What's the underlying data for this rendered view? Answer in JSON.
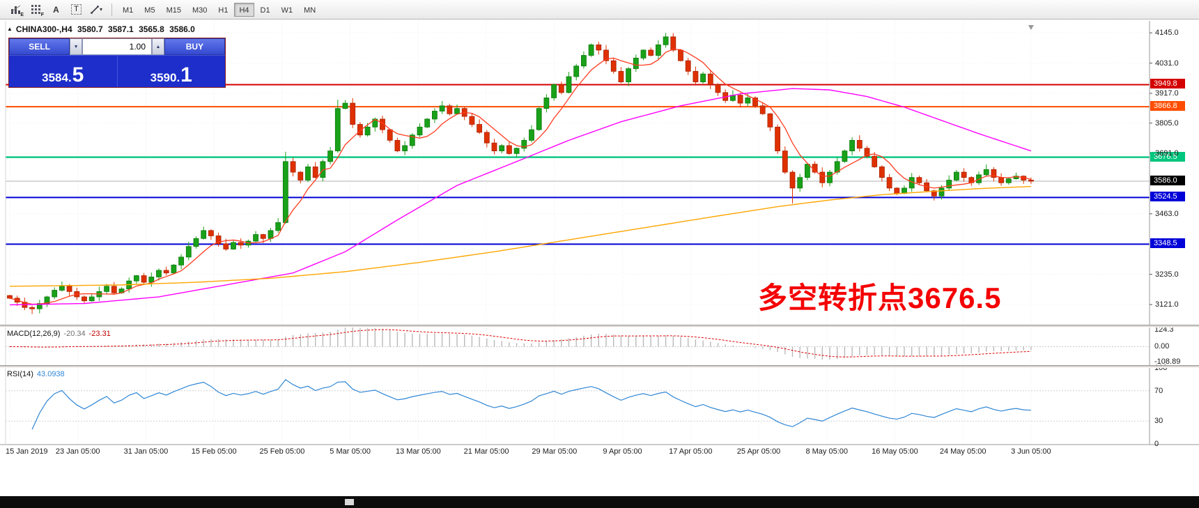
{
  "toolbar": {
    "icons": [
      {
        "name": "expert-chart-icon",
        "label": "E"
      },
      {
        "name": "grid-template-icon",
        "label": "F"
      },
      {
        "name": "text-tool-icon",
        "label": "A"
      },
      {
        "name": "textbox-tool-icon",
        "label": "T"
      },
      {
        "name": "drawing-tools-dropdown",
        "label": "▾"
      }
    ],
    "timeframes": [
      "M1",
      "M5",
      "M15",
      "M30",
      "H1",
      "H4",
      "D1",
      "W1",
      "MN"
    ],
    "active_timeframe": "H4"
  },
  "symbol_info": {
    "tri": "▲",
    "name": "CHINA300-,H4",
    "open": "3580.7",
    "high": "3587.1",
    "low": "3565.8",
    "close": "3586.0"
  },
  "trade_panel": {
    "sell_label": "SELL",
    "buy_label": "BUY",
    "volume": "1.00",
    "spin_down": "▼",
    "spin_up": "▲",
    "sell_price_base": "3584.",
    "sell_price_big": "5",
    "buy_price_base": "3590.",
    "buy_price_big": "1"
  },
  "annotation": {
    "text": "多空转折点3676.5",
    "color": "#f50000"
  },
  "price_axis": {
    "range": [
      3045,
      4190
    ],
    "ticks": [
      "4145.0",
      "4031.0",
      "3917.0",
      "3805.0",
      "3691.0",
      "3463.0",
      "3235.0",
      "3121.0"
    ]
  },
  "hlines": [
    {
      "value": 3949.8,
      "label": "3949.8",
      "color": "#d40000",
      "width": 2
    },
    {
      "value": 3866.8,
      "label": "3866.8",
      "color": "#ff4d00",
      "width": 2
    },
    {
      "value": 3676.5,
      "label": "3676.5",
      "color": "#00c57d",
      "width": 2.4
    },
    {
      "value": 3586.0,
      "label": "3586.0",
      "color": "#000000",
      "line_color": "#b0b0b0",
      "width": 1
    },
    {
      "value": 3524.5,
      "label": "3524.5",
      "color": "#0000d8",
      "width": 2
    },
    {
      "value": 3348.5,
      "label": "3348.5",
      "color": "#0000d8",
      "width": 2
    }
  ],
  "time_axis": [
    "15 Jan 2019",
    "23 Jan 05:00",
    "31 Jan 05:00",
    "15 Feb 05:00",
    "25 Feb 05:00",
    "5 Mar 05:00",
    "13 Mar 05:00",
    "21 Mar 05:00",
    "29 Mar 05:00",
    "9 Apr 05:00",
    "17 Apr 05:00",
    "25 Apr 05:00",
    "8 May 05:00",
    "16 May 05:00",
    "24 May 05:00",
    "3 Jun 05:00"
  ],
  "indicators": {
    "macd": {
      "label": "MACD(12,26,9)",
      "value_main": "-20.34",
      "value_signal": "-23.31",
      "axis": [
        "124.3",
        "0.00",
        "-108.89"
      ],
      "range": [
        -135,
        140
      ],
      "hist_color": "#b9b9b9",
      "signal_color": "#e00000"
    },
    "rsi": {
      "label": "RSI(14)",
      "value": "43.0938",
      "axis": [
        "100",
        "70",
        "30",
        "0"
      ],
      "levels": [
        70,
        30
      ],
      "range": [
        0,
        100
      ],
      "line_color": "#2e86d5"
    }
  },
  "chart_data": {
    "type": "candlestick",
    "symbol": "CHINA300-",
    "timeframe": "H4",
    "first_open": 3155,
    "closes": [
      3145,
      3130,
      3110,
      3105,
      3125,
      3150,
      3175,
      3190,
      3170,
      3150,
      3135,
      3150,
      3170,
      3190,
      3165,
      3180,
      3210,
      3230,
      3205,
      3225,
      3250,
      3240,
      3270,
      3300,
      3340,
      3370,
      3400,
      3380,
      3350,
      3330,
      3355,
      3345,
      3360,
      3385,
      3370,
      3400,
      3430,
      3660,
      3620,
      3590,
      3640,
      3600,
      3660,
      3700,
      3860,
      3880,
      3800,
      3760,
      3790,
      3820,
      3780,
      3740,
      3700,
      3720,
      3760,
      3790,
      3820,
      3850,
      3870,
      3840,
      3860,
      3830,
      3800,
      3770,
      3730,
      3700,
      3720,
      3690,
      3710,
      3740,
      3780,
      3860,
      3900,
      3950,
      3920,
      3980,
      4020,
      4060,
      4100,
      4080,
      4040,
      4000,
      3960,
      4010,
      4050,
      4080,
      4060,
      4100,
      4130,
      4080,
      4040,
      4000,
      3960,
      3990,
      3950,
      3920,
      3890,
      3910,
      3880,
      3900,
      3870,
      3840,
      3790,
      3700,
      3620,
      3560,
      3600,
      3650,
      3620,
      3580,
      3620,
      3660,
      3700,
      3740,
      3710,
      3680,
      3640,
      3600,
      3560,
      3540,
      3560,
      3600,
      3580,
      3550,
      3530,
      3560,
      3590,
      3620,
      3600,
      3580,
      3610,
      3630,
      3600,
      3580,
      3595,
      3605,
      3590,
      3586
    ],
    "wick_overrides": {
      "3": {
        "low": 3085
      },
      "37": {
        "high": 3697
      },
      "44": {
        "high": 3893
      },
      "88": {
        "high": 4145
      },
      "105": {
        "low": 3502
      }
    },
    "bull_color": "#19a119",
    "bear_color": "#df3000",
    "ma_fast": {
      "color": "#ff3b1f",
      "period": 6
    },
    "ma_mid": {
      "color": "#ff00ff",
      "points": [
        [
          0,
          3120
        ],
        [
          10,
          3125
        ],
        [
          20,
          3150
        ],
        [
          30,
          3200
        ],
        [
          38,
          3240
        ],
        [
          45,
          3320
        ],
        [
          52,
          3440
        ],
        [
          60,
          3570
        ],
        [
          68,
          3660
        ],
        [
          75,
          3740
        ],
        [
          82,
          3810
        ],
        [
          90,
          3870
        ],
        [
          98,
          3915
        ],
        [
          105,
          3935
        ],
        [
          110,
          3930
        ],
        [
          115,
          3905
        ],
        [
          120,
          3865
        ],
        [
          125,
          3815
        ],
        [
          130,
          3765
        ],
        [
          137,
          3700
        ]
      ]
    },
    "ma_slow": {
      "color": "#ffa500",
      "points": [
        [
          0,
          3190
        ],
        [
          15,
          3195
        ],
        [
          25,
          3205
        ],
        [
          35,
          3220
        ],
        [
          45,
          3245
        ],
        [
          55,
          3280
        ],
        [
          65,
          3320
        ],
        [
          75,
          3365
        ],
        [
          85,
          3410
        ],
        [
          95,
          3455
        ],
        [
          103,
          3490
        ],
        [
          110,
          3515
        ],
        [
          117,
          3535
        ],
        [
          124,
          3548
        ],
        [
          130,
          3558
        ],
        [
          137,
          3566
        ]
      ]
    }
  }
}
